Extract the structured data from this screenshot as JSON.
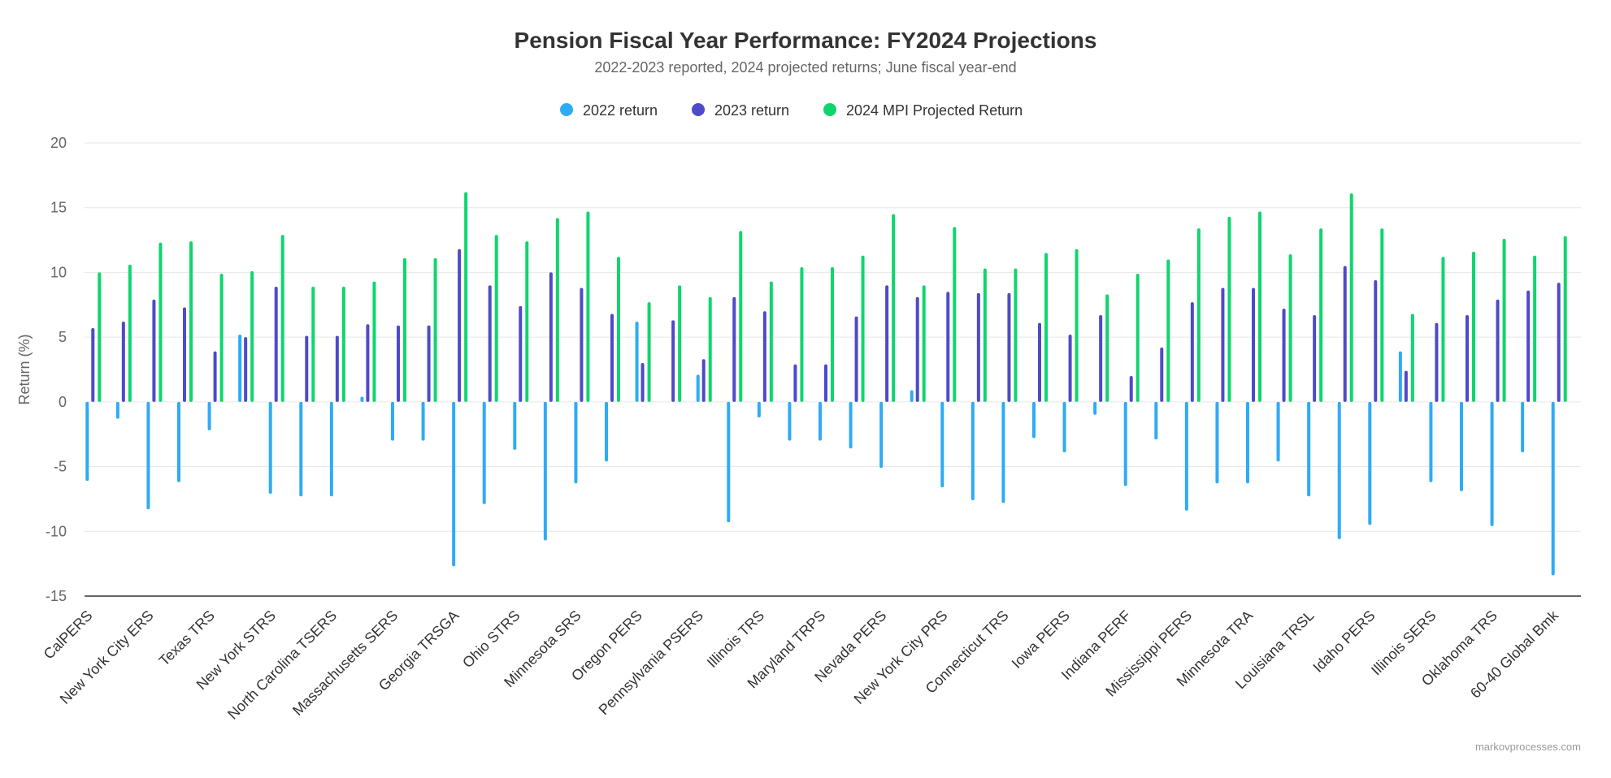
{
  "chart_data": {
    "type": "bar",
    "title": "Pension Fiscal Year Performance: FY2024 Projections",
    "subtitle": "2022-2023 reported, 2024 projected returns; June fiscal year-end",
    "ylabel": "Return (%)",
    "xlabel": "",
    "ylim": [
      -15,
      20
    ],
    "yticks": [
      20,
      15,
      10,
      5,
      0,
      -5,
      -10,
      -15
    ],
    "legend_position": "top-center",
    "credit": "markovprocesses.com",
    "categories": [
      "CalPERS",
      "",
      "New York City ERS",
      "",
      "Texas TRS",
      "",
      "New York STRS",
      "",
      "North Carolina TSERS",
      "",
      "Massachusetts SERS",
      "",
      "Georgia TRSGA",
      "",
      "Ohio STRS",
      "",
      "Minnesota SRS",
      "",
      "Oregon PERS",
      "",
      "Pennsylvania PSERS",
      "",
      "Illinois TRS",
      "",
      "Maryland TRPS",
      "",
      "Nevada PERS",
      "",
      "New York City PRS",
      "",
      "Connecticut TRS",
      "",
      "Iowa PERS",
      "",
      "Indiana PERF",
      "",
      "Mississippi PERS",
      "",
      "Minnesota TRA",
      "",
      "Louisiana TRSL",
      "",
      "Idaho PERS",
      "",
      "Illinois SERS",
      "",
      "Oklahoma TRS",
      "",
      "60-40 Global Bmk"
    ],
    "series": [
      {
        "name": "2022 return",
        "color": "#2eabf5",
        "values": [
          -6.1,
          -1.3,
          -8.3,
          -6.2,
          -2.2,
          5.2,
          -7.1,
          -7.3,
          -7.3,
          0.4,
          -3.0,
          -3.0,
          -12.7,
          -7.9,
          -3.7,
          -10.7,
          -6.3,
          -4.6,
          6.2,
          null,
          2.1,
          -9.3,
          -1.2,
          -3.0,
          -3.0,
          -3.6,
          -5.1,
          0.9,
          -6.6,
          -7.6,
          -7.8,
          -2.8,
          -3.9,
          -1.0,
          -6.5,
          -2.9,
          -8.4,
          -6.3,
          -6.3,
          -4.6,
          -7.3,
          -10.6,
          -9.5,
          3.9,
          -6.2,
          -6.9,
          -9.6,
          -3.9,
          -13.4
        ]
      },
      {
        "name": "2023 return",
        "color": "#4e4ac8",
        "values": [
          5.7,
          6.2,
          7.9,
          7.3,
          3.9,
          5.0,
          8.9,
          5.1,
          5.1,
          6.0,
          5.9,
          5.9,
          11.8,
          9.0,
          7.4,
          10.0,
          8.8,
          6.8,
          3.0,
          6.3,
          3.3,
          8.1,
          7.0,
          2.9,
          2.9,
          6.6,
          9.0,
          8.1,
          8.5,
          8.4,
          8.4,
          6.1,
          5.2,
          6.7,
          2.0,
          4.2,
          7.7,
          8.8,
          8.8,
          7.2,
          6.7,
          10.5,
          9.4,
          2.4,
          6.1,
          6.7,
          7.9,
          8.6,
          9.2
        ]
      },
      {
        "name": "2024 MPI Projected Return",
        "color": "#0ed66d",
        "values": [
          10.0,
          10.6,
          12.3,
          12.4,
          9.9,
          10.1,
          12.9,
          8.9,
          8.9,
          9.3,
          11.1,
          11.1,
          16.2,
          12.9,
          12.4,
          14.2,
          14.7,
          11.2,
          7.7,
          9.0,
          8.1,
          13.2,
          9.3,
          10.4,
          10.4,
          11.3,
          14.5,
          9.0,
          13.5,
          10.3,
          10.3,
          11.5,
          11.8,
          8.3,
          9.9,
          11.0,
          13.4,
          14.3,
          14.7,
          11.4,
          13.4,
          16.1,
          13.4,
          6.8,
          11.2,
          11.6,
          12.6,
          11.3,
          12.8
        ]
      }
    ]
  }
}
